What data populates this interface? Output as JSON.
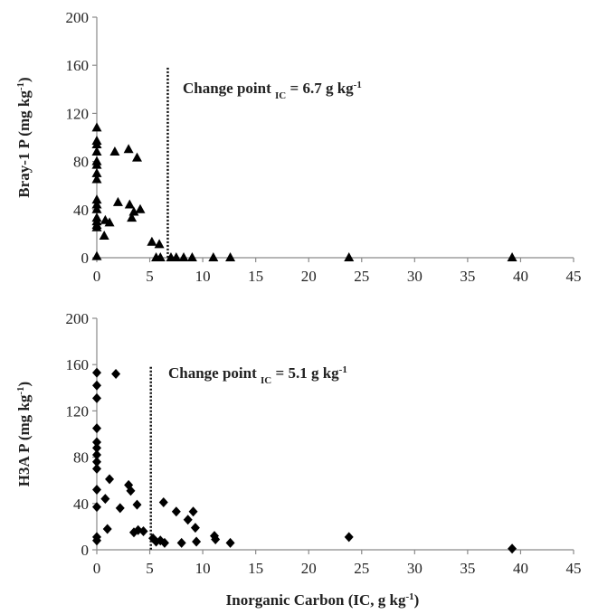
{
  "chart_data": [
    {
      "type": "scatter",
      "marker": "triangle",
      "xlabel": "",
      "ylabel": "Bray-1 P (mg kg⁻¹)",
      "xlim": [
        0,
        45
      ],
      "ylim": [
        0,
        200
      ],
      "xticks": [
        0,
        5,
        10,
        15,
        20,
        25,
        30,
        35,
        40,
        45
      ],
      "yticks": [
        0,
        40,
        80,
        120,
        160,
        200
      ],
      "grid": false,
      "change_point": 6.7,
      "annotation": {
        "prefix": "Change point ",
        "sub": "IC",
        "suffix": " = 6.7 g kg",
        "sup": "-1"
      },
      "points": [
        [
          0,
          108
        ],
        [
          0,
          97
        ],
        [
          0,
          94
        ],
        [
          0,
          88
        ],
        [
          0,
          80
        ],
        [
          0,
          77
        ],
        [
          0,
          70
        ],
        [
          0,
          65
        ],
        [
          0,
          48
        ],
        [
          0,
          44
        ],
        [
          0,
          40
        ],
        [
          0,
          33
        ],
        [
          0,
          30
        ],
        [
          0,
          27
        ],
        [
          0,
          25
        ],
        [
          0,
          1
        ],
        [
          0.7,
          18
        ],
        [
          0.8,
          31
        ],
        [
          1.2,
          29
        ],
        [
          1.7,
          88
        ],
        [
          2,
          46
        ],
        [
          3,
          90
        ],
        [
          3.1,
          44
        ],
        [
          3.3,
          33
        ],
        [
          3.5,
          38
        ],
        [
          3.8,
          83
        ],
        [
          4.1,
          40
        ],
        [
          5.2,
          13
        ],
        [
          5.6,
          0
        ],
        [
          5.9,
          11
        ],
        [
          6,
          0
        ],
        [
          7,
          0
        ],
        [
          7.5,
          0
        ],
        [
          8.2,
          0
        ],
        [
          9,
          0
        ],
        [
          11,
          0
        ],
        [
          12.6,
          0
        ],
        [
          23.8,
          0
        ],
        [
          39.2,
          0
        ]
      ]
    },
    {
      "type": "scatter",
      "marker": "diamond",
      "xlabel": "Inorganic Carbon  (IC, g kg⁻¹)",
      "ylabel": "H3A P (mg kg⁻¹)",
      "xlim": [
        0,
        45
      ],
      "ylim": [
        0,
        200
      ],
      "xticks": [
        0,
        5,
        10,
        15,
        20,
        25,
        30,
        35,
        40,
        45
      ],
      "yticks": [
        0,
        40,
        80,
        120,
        160,
        200
      ],
      "grid": false,
      "change_point": 5.1,
      "annotation": {
        "prefix": "Change point ",
        "sub": "IC",
        "suffix": " = 5.1 g kg",
        "sup": "-1"
      },
      "points": [
        [
          0,
          153
        ],
        [
          0,
          142
        ],
        [
          0,
          131
        ],
        [
          0,
          105
        ],
        [
          0,
          93
        ],
        [
          0,
          88
        ],
        [
          0,
          82
        ],
        [
          0,
          76
        ],
        [
          0,
          70
        ],
        [
          0,
          52
        ],
        [
          0,
          37
        ],
        [
          0,
          11
        ],
        [
          0,
          8
        ],
        [
          0.8,
          44
        ],
        [
          1,
          18
        ],
        [
          1.2,
          61
        ],
        [
          1.8,
          152
        ],
        [
          2.2,
          36
        ],
        [
          3,
          56
        ],
        [
          3.2,
          51
        ],
        [
          3.5,
          15
        ],
        [
          3.8,
          39
        ],
        [
          3.9,
          17
        ],
        [
          4.4,
          16
        ],
        [
          5.3,
          10
        ],
        [
          5.6,
          7
        ],
        [
          6,
          8
        ],
        [
          6.3,
          41
        ],
        [
          6.4,
          6
        ],
        [
          7.5,
          33
        ],
        [
          8,
          6
        ],
        [
          8.6,
          26
        ],
        [
          9.1,
          33
        ],
        [
          9.3,
          19
        ],
        [
          9.4,
          7
        ],
        [
          11.1,
          12
        ],
        [
          11.2,
          9
        ],
        [
          12.6,
          6
        ],
        [
          23.8,
          11
        ],
        [
          39.2,
          1
        ]
      ]
    }
  ]
}
